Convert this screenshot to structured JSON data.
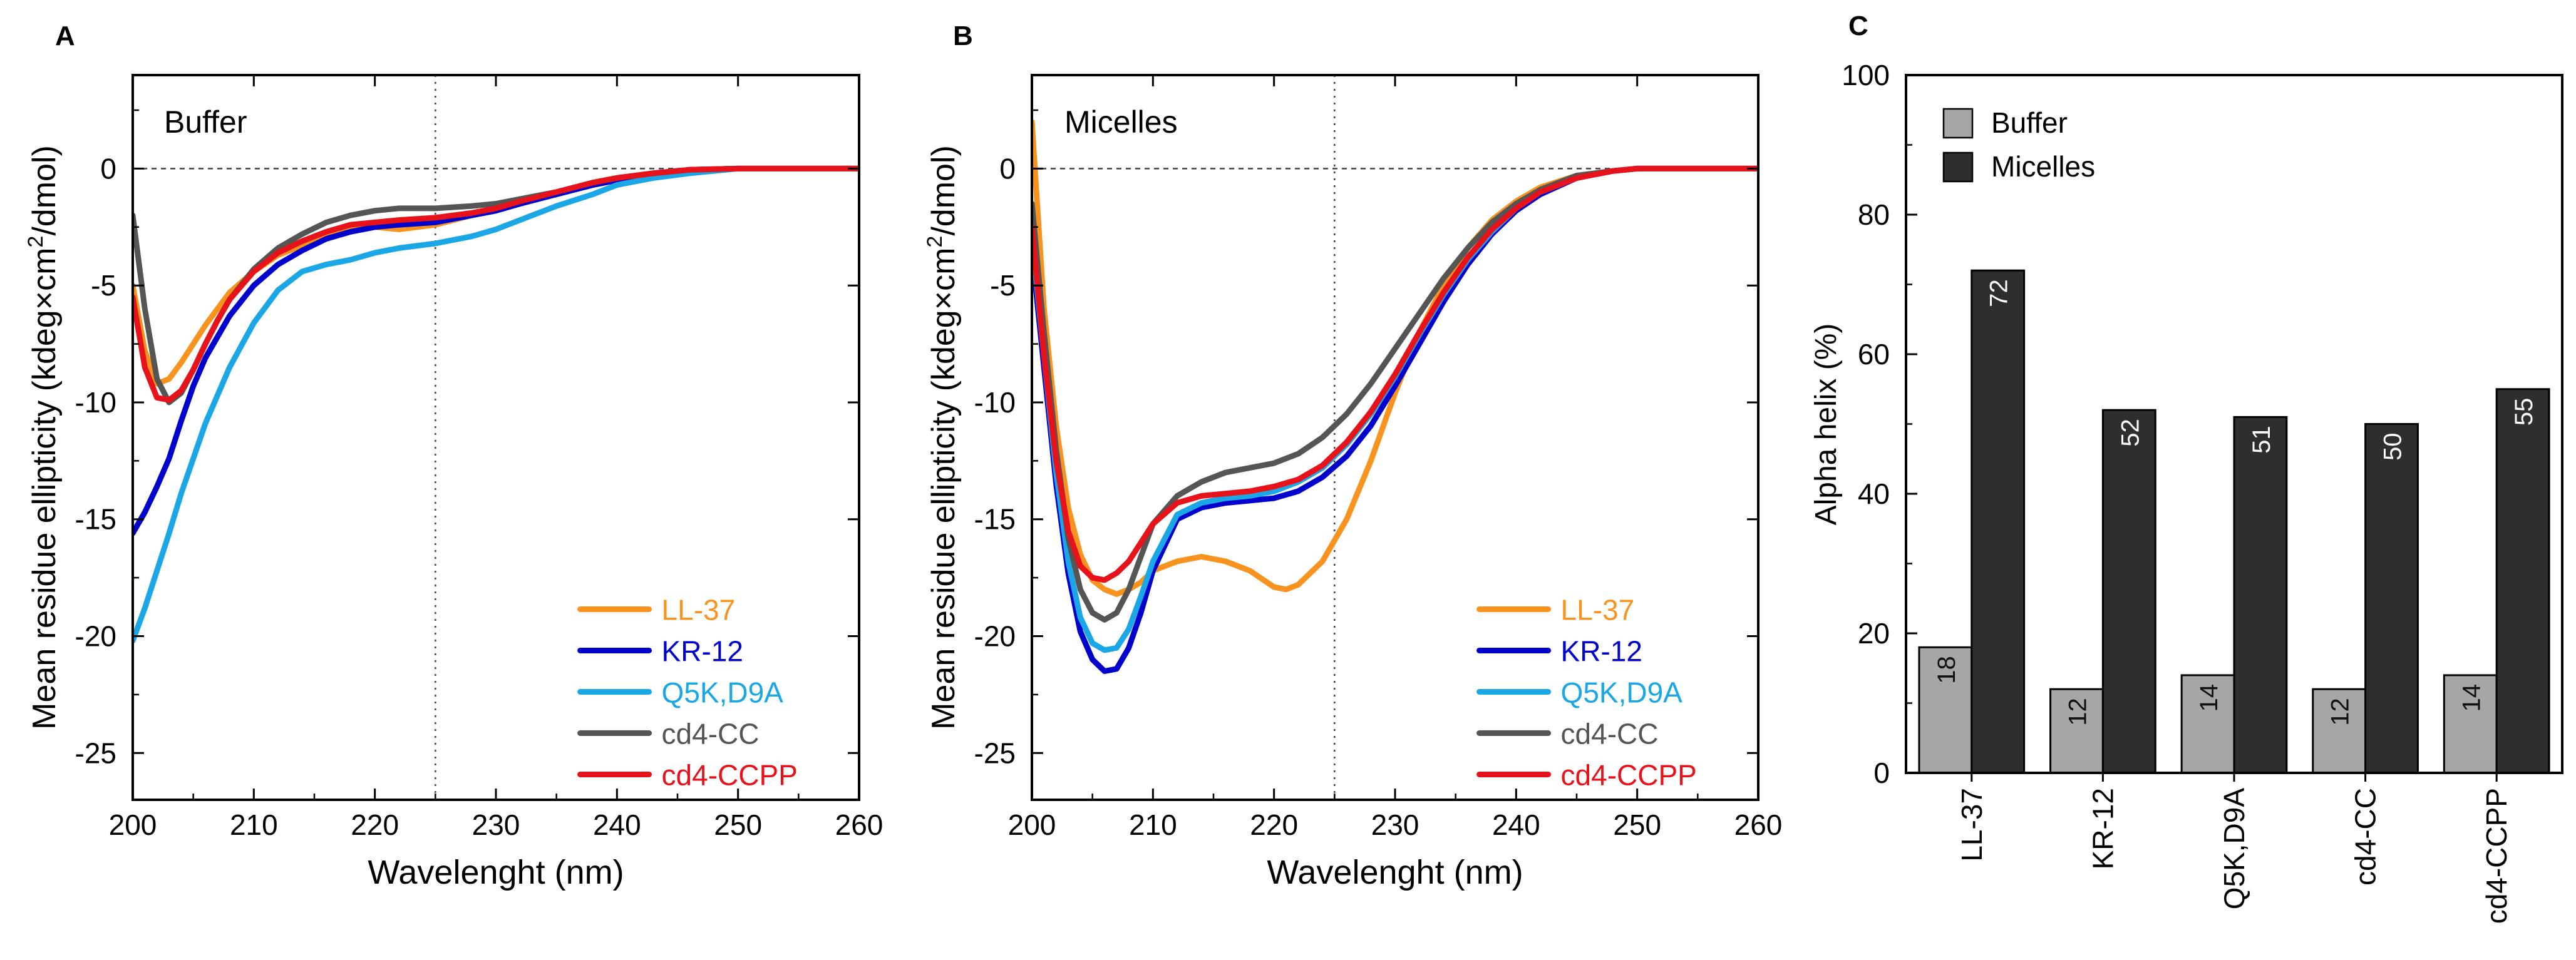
{
  "chart_data": [
    {
      "type": "line",
      "panel_label": "A",
      "title": "Buffer",
      "xlabel": "Wavelenght (nm)",
      "ylabel_parts": [
        "Mean residue ellipticity (kdeg×cm",
        "2",
        "/dmol)"
      ],
      "xlim": [
        200,
        260
      ],
      "ylim": [
        -27,
        4
      ],
      "xticks": [
        200,
        210,
        220,
        230,
        240,
        250,
        260
      ],
      "yticks": [
        0,
        -5,
        -10,
        -15,
        -20,
        -25
      ],
      "ytick_labels": [
        "0",
        "-5",
        "-10",
        "-15",
        "-20",
        "-25"
      ],
      "ref_lines": {
        "h": 0,
        "v": 225
      },
      "legend_position": "bottom-right",
      "series": [
        {
          "name": "LL-37",
          "color": "#f7931e",
          "x": [
            200,
            201,
            202,
            203,
            204,
            205,
            206,
            207,
            208,
            210,
            212,
            214,
            216,
            218,
            220,
            222,
            225,
            228,
            230,
            232,
            235,
            238,
            240,
            243,
            246,
            250,
            255,
            260
          ],
          "y": [
            -5,
            -7.8,
            -9.2,
            -9.0,
            -8.3,
            -7.5,
            -6.7,
            -6.0,
            -5.3,
            -4.4,
            -3.7,
            -3.3,
            -2.9,
            -2.6,
            -2.5,
            -2.6,
            -2.4,
            -2.0,
            -1.7,
            -1.4,
            -1.0,
            -0.6,
            -0.4,
            -0.2,
            -0.05,
            0,
            0,
            0
          ]
        },
        {
          "name": "KR-12",
          "color": "#0000cd",
          "x": [
            200,
            201,
            202,
            203,
            204,
            205,
            206,
            207,
            208,
            210,
            212,
            214,
            216,
            218,
            220,
            222,
            225,
            228,
            230,
            232,
            235,
            238,
            240,
            243,
            246,
            250,
            255,
            260
          ],
          "y": [
            -15.6,
            -14.7,
            -13.6,
            -12.4,
            -10.8,
            -9.3,
            -8.1,
            -7.2,
            -6.3,
            -5.0,
            -4.1,
            -3.5,
            -3.0,
            -2.7,
            -2.5,
            -2.4,
            -2.3,
            -2.0,
            -1.8,
            -1.5,
            -1.1,
            -0.7,
            -0.5,
            -0.2,
            -0.05,
            0,
            0,
            0
          ]
        },
        {
          "name": "Q5K,D9A",
          "color": "#1ba7e6",
          "x": [
            200,
            201,
            202,
            203,
            204,
            205,
            206,
            207,
            208,
            210,
            212,
            214,
            216,
            218,
            220,
            222,
            225,
            228,
            230,
            232,
            235,
            238,
            240,
            243,
            246,
            250,
            255,
            260
          ],
          "y": [
            -20.2,
            -18.8,
            -17.2,
            -15.6,
            -13.9,
            -12.4,
            -10.9,
            -9.7,
            -8.5,
            -6.6,
            -5.2,
            -4.4,
            -4.1,
            -3.9,
            -3.6,
            -3.4,
            -3.2,
            -2.9,
            -2.6,
            -2.2,
            -1.6,
            -1.1,
            -0.7,
            -0.4,
            -0.2,
            0,
            0,
            0
          ]
        },
        {
          "name": "cd4-CC",
          "color": "#555555",
          "x": [
            200,
            201,
            202,
            203,
            204,
            205,
            206,
            207,
            208,
            210,
            212,
            214,
            216,
            218,
            220,
            222,
            225,
            228,
            230,
            232,
            235,
            238,
            240,
            243,
            246,
            250,
            255,
            260
          ],
          "y": [
            -2.0,
            -6.0,
            -9.0,
            -10.0,
            -9.6,
            -8.6,
            -7.5,
            -6.5,
            -5.6,
            -4.3,
            -3.4,
            -2.8,
            -2.3,
            -2.0,
            -1.8,
            -1.7,
            -1.7,
            -1.6,
            -1.5,
            -1.3,
            -1.0,
            -0.6,
            -0.4,
            -0.2,
            -0.05,
            0,
            0,
            0
          ]
        },
        {
          "name": "cd4-CCPP",
          "color": "#e8121b",
          "x": [
            200,
            201,
            202,
            203,
            204,
            205,
            206,
            207,
            208,
            210,
            212,
            214,
            216,
            218,
            220,
            222,
            225,
            228,
            230,
            232,
            235,
            238,
            240,
            243,
            246,
            250,
            255,
            260
          ],
          "y": [
            -5.5,
            -8.5,
            -9.8,
            -9.9,
            -9.5,
            -8.6,
            -7.5,
            -6.5,
            -5.6,
            -4.4,
            -3.6,
            -3.1,
            -2.7,
            -2.4,
            -2.3,
            -2.2,
            -2.1,
            -1.9,
            -1.7,
            -1.4,
            -1.0,
            -0.6,
            -0.4,
            -0.2,
            -0.05,
            0,
            0,
            0
          ]
        }
      ]
    },
    {
      "type": "line",
      "panel_label": "B",
      "title": "Micelles",
      "xlabel": "Wavelenght (nm)",
      "ylabel_parts": [
        "Mean residue ellipticity (kdeg×cm",
        "2",
        "/dmol)"
      ],
      "xlim": [
        200,
        260
      ],
      "ylim": [
        -27,
        4
      ],
      "xticks": [
        200,
        210,
        220,
        230,
        240,
        250,
        260
      ],
      "yticks": [
        0,
        -5,
        -10,
        -15,
        -20,
        -25
      ],
      "ytick_labels": [
        "0",
        "-5",
        "-10",
        "-15",
        "-20",
        "-25"
      ],
      "ref_lines": {
        "h": 0,
        "v": 225
      },
      "legend_position": "bottom-right",
      "series": [
        {
          "name": "LL-37",
          "color": "#f7931e",
          "x": [
            200,
            201,
            202,
            203,
            204,
            205,
            206,
            207,
            208,
            209,
            210,
            212,
            214,
            216,
            218,
            220,
            221,
            222,
            224,
            226,
            228,
            230,
            232,
            234,
            236,
            238,
            240,
            242,
            245,
            248,
            250,
            255,
            260
          ],
          "y": [
            2.0,
            -6.0,
            -11.0,
            -14.5,
            -16.5,
            -17.6,
            -18.0,
            -18.2,
            -18.0,
            -17.7,
            -17.2,
            -16.8,
            -16.6,
            -16.8,
            -17.2,
            -17.9,
            -18.0,
            -17.8,
            -16.8,
            -15.0,
            -12.5,
            -9.6,
            -7.0,
            -5.0,
            -3.4,
            -2.2,
            -1.4,
            -0.8,
            -0.3,
            -0.1,
            0,
            0,
            0
          ]
        },
        {
          "name": "KR-12",
          "color": "#0000cd",
          "x": [
            200,
            201,
            202,
            203,
            204,
            205,
            206,
            207,
            208,
            209,
            210,
            212,
            214,
            216,
            218,
            220,
            222,
            224,
            226,
            228,
            230,
            232,
            234,
            236,
            238,
            240,
            242,
            245,
            248,
            250,
            255,
            260
          ],
          "y": [
            -3.5,
            -8.5,
            -13.5,
            -17.3,
            -19.8,
            -21.0,
            -21.5,
            -21.4,
            -20.5,
            -19.0,
            -17.2,
            -15.0,
            -14.5,
            -14.3,
            -14.2,
            -14.1,
            -13.8,
            -13.2,
            -12.3,
            -11.0,
            -9.3,
            -7.5,
            -5.7,
            -4.1,
            -2.8,
            -1.8,
            -1.1,
            -0.4,
            -0.1,
            0,
            0,
            0
          ]
        },
        {
          "name": "Q5K,D9A",
          "color": "#1ba7e6",
          "x": [
            200,
            201,
            202,
            203,
            204,
            205,
            206,
            207,
            208,
            209,
            210,
            212,
            214,
            216,
            218,
            220,
            222,
            224,
            226,
            228,
            230,
            232,
            234,
            236,
            238,
            240,
            242,
            245,
            248,
            250,
            255,
            260
          ],
          "y": [
            -3.0,
            -8.0,
            -13.0,
            -16.8,
            -19.2,
            -20.3,
            -20.6,
            -20.5,
            -19.7,
            -18.3,
            -16.8,
            -14.8,
            -14.3,
            -14.1,
            -14.0,
            -13.8,
            -13.4,
            -12.8,
            -11.8,
            -10.5,
            -8.9,
            -7.1,
            -5.4,
            -3.9,
            -2.7,
            -1.7,
            -1.0,
            -0.4,
            -0.1,
            0,
            0,
            0
          ]
        },
        {
          "name": "cd4-CC",
          "color": "#555555",
          "x": [
            200,
            201,
            202,
            203,
            204,
            205,
            206,
            207,
            208,
            209,
            210,
            212,
            214,
            216,
            218,
            220,
            222,
            224,
            226,
            228,
            230,
            232,
            234,
            236,
            238,
            240,
            242,
            245,
            248,
            250,
            255,
            260
          ],
          "y": [
            -1.5,
            -7.0,
            -12.0,
            -15.8,
            -18.0,
            -19.0,
            -19.3,
            -19.0,
            -18.0,
            -16.6,
            -15.2,
            -14.0,
            -13.4,
            -13.0,
            -12.8,
            -12.6,
            -12.2,
            -11.5,
            -10.5,
            -9.2,
            -7.7,
            -6.2,
            -4.7,
            -3.4,
            -2.3,
            -1.5,
            -0.9,
            -0.3,
            -0.1,
            0,
            0,
            0
          ]
        },
        {
          "name": "cd4-CCPP",
          "color": "#e8121b",
          "x": [
            200,
            201,
            202,
            203,
            204,
            205,
            206,
            207,
            208,
            209,
            210,
            212,
            214,
            216,
            218,
            220,
            222,
            224,
            226,
            228,
            230,
            232,
            234,
            236,
            238,
            240,
            242,
            245,
            248,
            250,
            255,
            260
          ],
          "y": [
            -2.5,
            -8.0,
            -12.5,
            -15.5,
            -17.0,
            -17.5,
            -17.6,
            -17.3,
            -16.8,
            -16.0,
            -15.2,
            -14.3,
            -14.0,
            -13.9,
            -13.8,
            -13.6,
            -13.3,
            -12.7,
            -11.7,
            -10.4,
            -8.8,
            -7.0,
            -5.3,
            -3.8,
            -2.6,
            -1.7,
            -1.0,
            -0.4,
            -0.1,
            0,
            0,
            0
          ]
        }
      ]
    },
    {
      "type": "bar",
      "panel_label": "C",
      "ylabel": "Alpha helix (%)",
      "ylim": [
        0,
        100
      ],
      "yticks": [
        0,
        20,
        40,
        60,
        80,
        100
      ],
      "categories": [
        "LL-37",
        "KR-12",
        "Q5K,D9A",
        "cd4-CC",
        "cd4-CCPP"
      ],
      "legend_position": "top-left",
      "series": [
        {
          "name": "Buffer",
          "color": "#a6a6a6",
          "values": [
            18,
            12,
            14,
            12,
            14
          ],
          "labels": [
            "18",
            "12",
            "14",
            "12",
            "14"
          ]
        },
        {
          "name": "Micelles",
          "color": "#2e2e2e",
          "values": [
            72,
            52,
            51,
            50,
            55
          ],
          "labels": [
            "72",
            "52",
            "51",
            "50",
            "55"
          ]
        }
      ]
    }
  ]
}
